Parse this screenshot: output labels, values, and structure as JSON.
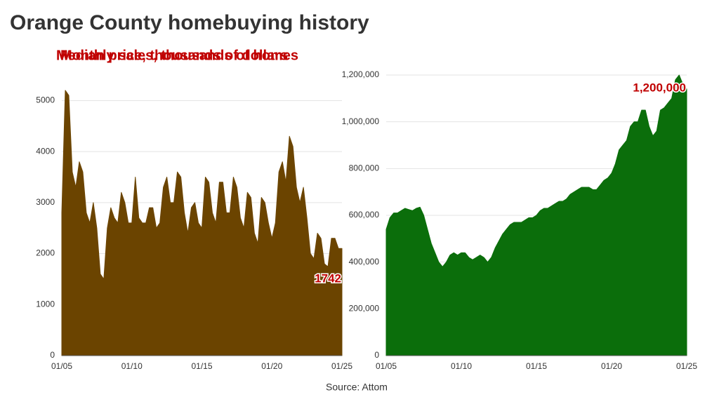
{
  "title": "Orange County homebuying history",
  "source": "Source: Attom",
  "chart_data": [
    {
      "type": "area",
      "title": "Monthly sales, thousands of homes",
      "color": "#6b4400",
      "annotation": "1742",
      "x": [
        2005,
        2005.25,
        2005.5,
        2005.75,
        2006,
        2006.25,
        2006.5,
        2006.75,
        2007,
        2007.25,
        2007.5,
        2007.75,
        2008,
        2008.25,
        2008.5,
        2008.75,
        2009,
        2009.25,
        2009.5,
        2009.75,
        2010,
        2010.25,
        2010.5,
        2010.75,
        2011,
        2011.25,
        2011.5,
        2011.75,
        2012,
        2012.25,
        2012.5,
        2012.75,
        2013,
        2013.25,
        2013.5,
        2013.75,
        2014,
        2014.25,
        2014.5,
        2014.75,
        2015,
        2015.25,
        2015.5,
        2015.75,
        2016,
        2016.25,
        2016.5,
        2016.75,
        2017,
        2017.25,
        2017.5,
        2017.75,
        2018,
        2018.25,
        2018.5,
        2018.75,
        2019,
        2019.25,
        2019.5,
        2019.75,
        2020,
        2020.25,
        2020.5,
        2020.75,
        2021,
        2021.25,
        2021.5,
        2021.75,
        2022,
        2022.25,
        2022.5,
        2022.75,
        2023,
        2023.25,
        2023.5,
        2023.75,
        2024,
        2024.25,
        2024.5,
        2024.75,
        2025
      ],
      "values": [
        2800,
        5200,
        5100,
        3600,
        3300,
        3800,
        3600,
        2800,
        2600,
        3000,
        2500,
        1600,
        1500,
        2500,
        2900,
        2700,
        2600,
        3200,
        3000,
        2600,
        2600,
        3500,
        2700,
        2600,
        2600,
        2900,
        2900,
        2500,
        2600,
        3300,
        3500,
        3000,
        3000,
        3600,
        3500,
        2800,
        2400,
        2900,
        3000,
        2600,
        2500,
        3500,
        3400,
        2800,
        2600,
        3400,
        3400,
        2800,
        2800,
        3500,
        3300,
        2700,
        2500,
        3200,
        3100,
        2400,
        2200,
        3100,
        3000,
        2600,
        2300,
        2600,
        3600,
        3800,
        3400,
        4300,
        4100,
        3300,
        3000,
        3300,
        2700,
        2000,
        1900,
        2400,
        2300,
        1800,
        1742,
        2300,
        2300,
        2100,
        2100
      ],
      "xlim": [
        2005,
        2025
      ],
      "xticks": [
        {
          "value": 2005,
          "label": "01/05"
        },
        {
          "value": 2010,
          "label": "01/10"
        },
        {
          "value": 2015,
          "label": "01/15"
        },
        {
          "value": 2020,
          "label": "01/20"
        },
        {
          "value": 2025,
          "label": "01/25"
        }
      ],
      "ylim": [
        0,
        5500
      ],
      "yticks": [
        0,
        1000,
        2000,
        3000,
        4000,
        5000
      ],
      "grid": true
    },
    {
      "type": "area",
      "title": "Median price, thousands of dollars",
      "color": "#0b6e0b",
      "annotation": "1,200,000",
      "x": [
        2005,
        2005.25,
        2005.5,
        2005.75,
        2006,
        2006.25,
        2006.5,
        2006.75,
        2007,
        2007.25,
        2007.5,
        2007.75,
        2008,
        2008.25,
        2008.5,
        2008.75,
        2009,
        2009.25,
        2009.5,
        2009.75,
        2010,
        2010.25,
        2010.5,
        2010.75,
        2011,
        2011.25,
        2011.5,
        2011.75,
        2012,
        2012.25,
        2012.5,
        2012.75,
        2013,
        2013.25,
        2013.5,
        2013.75,
        2014,
        2014.25,
        2014.5,
        2014.75,
        2015,
        2015.25,
        2015.5,
        2015.75,
        2016,
        2016.25,
        2016.5,
        2016.75,
        2017,
        2017.25,
        2017.5,
        2017.75,
        2018,
        2018.25,
        2018.5,
        2018.75,
        2019,
        2019.25,
        2019.5,
        2019.75,
        2020,
        2020.25,
        2020.5,
        2020.75,
        2021,
        2021.25,
        2021.5,
        2021.75,
        2022,
        2022.25,
        2022.5,
        2022.75,
        2023,
        2023.25,
        2023.5,
        2023.75,
        2024,
        2024.25,
        2024.5,
        2024.75,
        2025
      ],
      "values": [
        540000,
        590000,
        610000,
        610000,
        620000,
        630000,
        625000,
        620000,
        630000,
        635000,
        600000,
        540000,
        480000,
        440000,
        400000,
        380000,
        400000,
        430000,
        440000,
        430000,
        440000,
        440000,
        420000,
        410000,
        420000,
        430000,
        420000,
        400000,
        420000,
        460000,
        490000,
        520000,
        540000,
        560000,
        570000,
        570000,
        570000,
        580000,
        590000,
        590000,
        600000,
        620000,
        630000,
        630000,
        640000,
        650000,
        660000,
        660000,
        670000,
        690000,
        700000,
        710000,
        720000,
        720000,
        720000,
        710000,
        710000,
        730000,
        750000,
        760000,
        780000,
        820000,
        880000,
        900000,
        920000,
        980000,
        1000000,
        1000000,
        1050000,
        1050000,
        980000,
        940000,
        960000,
        1050000,
        1060000,
        1080000,
        1100000,
        1180000,
        1200000,
        1160000,
        1140000
      ],
      "xlim": [
        2005,
        2025
      ],
      "xticks": [
        {
          "value": 2005,
          "label": "01/05"
        },
        {
          "value": 2010,
          "label": "01/10"
        },
        {
          "value": 2015,
          "label": "01/15"
        },
        {
          "value": 2020,
          "label": "01/20"
        },
        {
          "value": 2025,
          "label": "01/25"
        }
      ],
      "ylim": [
        0,
        1200000
      ],
      "yticks": [
        0,
        {
          "value": 200000,
          "label": "200,000"
        },
        {
          "value": 400000,
          "label": "400,000"
        },
        {
          "value": 600000,
          "label": "600,000"
        },
        {
          "value": 800000,
          "label": "800,000"
        },
        {
          "value": 1000000,
          "label": "1,000,000"
        },
        {
          "value": 1200000,
          "label": "1,200,000"
        }
      ],
      "grid": true
    }
  ]
}
